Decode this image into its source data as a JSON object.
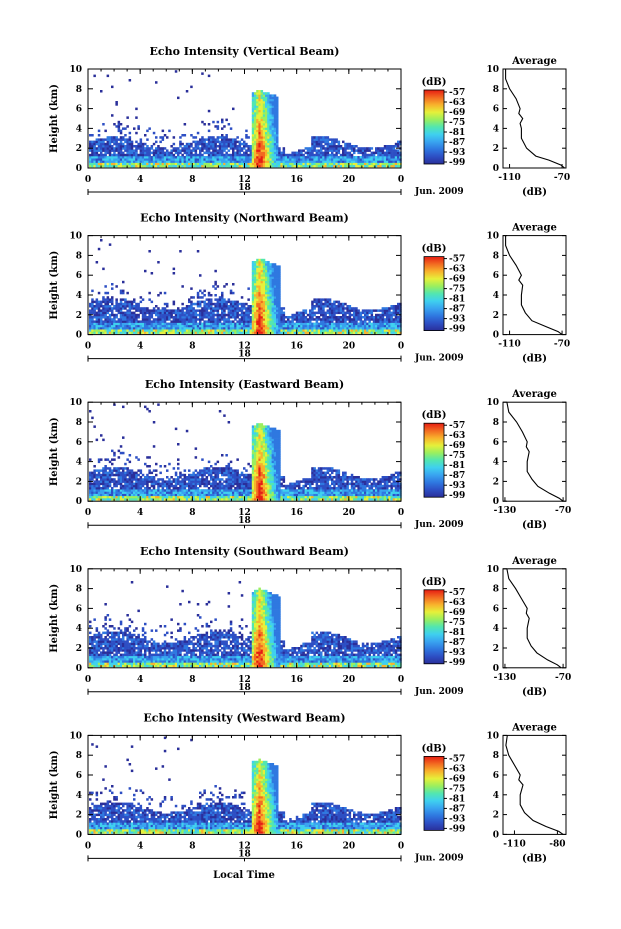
{
  "figure": {
    "xlabel": "Local Time",
    "date_label": "Jun. 2009",
    "colorbar_label": "(dB)",
    "avg_title": "Average",
    "avg_xlabel": "(dB)"
  },
  "colors": {
    "scale": [
      "#2a2f9a",
      "#2d4fc4",
      "#2f78e0",
      "#39a4f0",
      "#3fd0ef",
      "#52e6b0",
      "#9bef5e",
      "#e6f03a",
      "#f8b22c",
      "#f26a21",
      "#e61d12"
    ]
  },
  "chart_data": [
    {
      "type": "heatmap",
      "title": "Echo Intensity (Vertical Beam)",
      "ylabel": "Height (km)",
      "xlabel": "Local Time",
      "x_ticks": [
        "0",
        "4",
        "8",
        "12",
        "16",
        "20",
        "0"
      ],
      "x_sub_tick": "18",
      "y_ticks": [
        "0",
        "2",
        "4",
        "6",
        "8",
        "10"
      ],
      "xlim": [
        0,
        24
      ],
      "ylim": [
        0,
        10
      ],
      "colorbar": {
        "unit": "(dB)",
        "ticks": [
          -57,
          -63,
          -69,
          -75,
          -81,
          -87,
          -93,
          -99
        ],
        "range": [
          -99,
          -57
        ]
      },
      "features": {
        "boundary_layer_top_km": 2.5,
        "storm_start_h": 12.5,
        "storm_end_h": 14.5,
        "storm_top_km": 7.8
      },
      "average_profile": {
        "title": "Average",
        "xlabel": "(dB)",
        "x_ticks": [
          "-110",
          "-70"
        ],
        "xlim": [
          -115,
          -67
        ],
        "y_ticks": [
          "0",
          "2",
          "4",
          "6",
          "8",
          "10"
        ],
        "points": [
          [
            -68,
            0
          ],
          [
            -71,
            0.3
          ],
          [
            -80,
            0.8
          ],
          [
            -90,
            1.2
          ],
          [
            -97,
            2
          ],
          [
            -101,
            3
          ],
          [
            -101,
            4
          ],
          [
            -102,
            4.5
          ],
          [
            -100,
            5
          ],
          [
            -103,
            5.5
          ],
          [
            -102,
            6
          ],
          [
            -105,
            7
          ],
          [
            -110,
            8
          ],
          [
            -113,
            9
          ],
          [
            -113,
            10
          ]
        ]
      }
    },
    {
      "type": "heatmap",
      "title": "Echo Intensity (Northward Beam)",
      "ylabel": "Height (km)",
      "xlabel": "Local Time",
      "x_ticks": [
        "0",
        "4",
        "8",
        "12",
        "16",
        "20",
        "0"
      ],
      "x_sub_tick": "18",
      "y_ticks": [
        "0",
        "2",
        "4",
        "6",
        "8",
        "10"
      ],
      "xlim": [
        0,
        24
      ],
      "ylim": [
        0,
        10
      ],
      "colorbar": {
        "unit": "(dB)",
        "ticks": [
          -57,
          -63,
          -69,
          -75,
          -81,
          -87,
          -93,
          -99
        ],
        "range": [
          -99,
          -57
        ]
      },
      "features": {
        "boundary_layer_top_km": 3.0,
        "storm_start_h": 12.5,
        "storm_end_h": 14.6,
        "storm_top_km": 7.6
      },
      "average_profile": {
        "title": "Average",
        "xlabel": "(dB)",
        "x_ticks": [
          "-110",
          "-70"
        ],
        "xlim": [
          -115,
          -67
        ],
        "y_ticks": [
          "0",
          "2",
          "4",
          "6",
          "8",
          "10"
        ],
        "points": [
          [
            -70,
            0
          ],
          [
            -73,
            0.3
          ],
          [
            -82,
            0.8
          ],
          [
            -93,
            1.4
          ],
          [
            -98,
            2.2
          ],
          [
            -101,
            3
          ],
          [
            -101,
            4
          ],
          [
            -100,
            5
          ],
          [
            -103,
            5.5
          ],
          [
            -101,
            6
          ],
          [
            -105,
            7
          ],
          [
            -110,
            8
          ],
          [
            -113,
            9
          ],
          [
            -113,
            10
          ]
        ]
      }
    },
    {
      "type": "heatmap",
      "title": "Echo Intensity (Eastward Beam)",
      "ylabel": "Height (km)",
      "xlabel": "Local Time",
      "x_ticks": [
        "0",
        "4",
        "8",
        "12",
        "16",
        "20",
        "0"
      ],
      "x_sub_tick": "18",
      "y_ticks": [
        "0",
        "2",
        "4",
        "6",
        "8",
        "10"
      ],
      "xlim": [
        0,
        24
      ],
      "ylim": [
        0,
        10
      ],
      "colorbar": {
        "unit": "(dB)",
        "ticks": [
          -57,
          -63,
          -69,
          -75,
          -81,
          -87,
          -93,
          -99
        ],
        "range": [
          -99,
          -57
        ]
      },
      "features": {
        "boundary_layer_top_km": 2.8,
        "storm_start_h": 12.5,
        "storm_end_h": 14.6,
        "storm_top_km": 7.8
      },
      "average_profile": {
        "title": "Average",
        "xlabel": "(dB)",
        "x_ticks": [
          "-130",
          "-70"
        ],
        "xlim": [
          -132,
          -67
        ],
        "y_ticks": [
          "0",
          "2",
          "4",
          "6",
          "8",
          "10"
        ],
        "points": [
          [
            -70,
            0
          ],
          [
            -74,
            0.3
          ],
          [
            -84,
            0.8
          ],
          [
            -96,
            1.5
          ],
          [
            -102,
            2.2
          ],
          [
            -107,
            3
          ],
          [
            -107,
            4
          ],
          [
            -105,
            5
          ],
          [
            -108,
            5.5
          ],
          [
            -107,
            6
          ],
          [
            -112,
            7
          ],
          [
            -118,
            8
          ],
          [
            -126,
            9
          ],
          [
            -128,
            10
          ]
        ]
      }
    },
    {
      "type": "heatmap",
      "title": "Echo Intensity (Southward Beam)",
      "ylabel": "Height (km)",
      "xlabel": "Local Time",
      "x_ticks": [
        "0",
        "4",
        "8",
        "12",
        "16",
        "20",
        "0"
      ],
      "x_sub_tick": "18",
      "y_ticks": [
        "0",
        "2",
        "4",
        "6",
        "8",
        "10"
      ],
      "xlim": [
        0,
        24
      ],
      "ylim": [
        0,
        10
      ],
      "colorbar": {
        "unit": "(dB)",
        "ticks": [
          -57,
          -63,
          -69,
          -75,
          -81,
          -87,
          -93,
          -99
        ],
        "range": [
          -99,
          -57
        ]
      },
      "features": {
        "boundary_layer_top_km": 3.0,
        "storm_start_h": 12.5,
        "storm_end_h": 14.6,
        "storm_top_km": 7.9
      },
      "average_profile": {
        "title": "Average",
        "xlabel": "(dB)",
        "x_ticks": [
          "-130",
          "-70"
        ],
        "xlim": [
          -132,
          -67
        ],
        "y_ticks": [
          "0",
          "2",
          "4",
          "6",
          "8",
          "10"
        ],
        "points": [
          [
            -72,
            0
          ],
          [
            -76,
            0.3
          ],
          [
            -86,
            0.8
          ],
          [
            -97,
            1.5
          ],
          [
            -103,
            2.2
          ],
          [
            -107,
            3
          ],
          [
            -107,
            4
          ],
          [
            -105,
            5
          ],
          [
            -108,
            5.5
          ],
          [
            -107,
            6
          ],
          [
            -113,
            7
          ],
          [
            -119,
            8
          ],
          [
            -126,
            9
          ],
          [
            -128,
            10
          ]
        ]
      }
    },
    {
      "type": "heatmap",
      "title": "Echo Intensity (Westward Beam)",
      "ylabel": "Height (km)",
      "xlabel": "Local Time",
      "x_ticks": [
        "0",
        "4",
        "8",
        "12",
        "16",
        "20",
        "0"
      ],
      "x_sub_tick": "18",
      "y_ticks": [
        "0",
        "2",
        "4",
        "6",
        "8",
        "10"
      ],
      "xlim": [
        0,
        24
      ],
      "ylim": [
        0,
        10
      ],
      "colorbar": {
        "unit": "(dB)",
        "ticks": [
          -57,
          -63,
          -69,
          -75,
          -81,
          -87,
          -93,
          -99
        ],
        "range": [
          -99,
          -57
        ]
      },
      "features": {
        "boundary_layer_top_km": 2.6,
        "storm_start_h": 12.5,
        "storm_end_h": 14.5,
        "storm_top_km": 7.5
      },
      "average_profile": {
        "title": "Average",
        "xlabel": "(dB)",
        "x_ticks": [
          "-110",
          "-80"
        ],
        "xlim": [
          -118,
          -74
        ],
        "y_ticks": [
          "0",
          "2",
          "4",
          "6",
          "8",
          "10"
        ],
        "points": [
          [
            -76,
            0
          ],
          [
            -79,
            0.3
          ],
          [
            -88,
            0.8
          ],
          [
            -97,
            1.4
          ],
          [
            -103,
            2.2
          ],
          [
            -106,
            3
          ],
          [
            -106,
            4
          ],
          [
            -104,
            5
          ],
          [
            -107,
            5.5
          ],
          [
            -106,
            6
          ],
          [
            -110,
            7
          ],
          [
            -114,
            8
          ],
          [
            -116,
            9
          ],
          [
            -115,
            10
          ]
        ]
      }
    }
  ]
}
